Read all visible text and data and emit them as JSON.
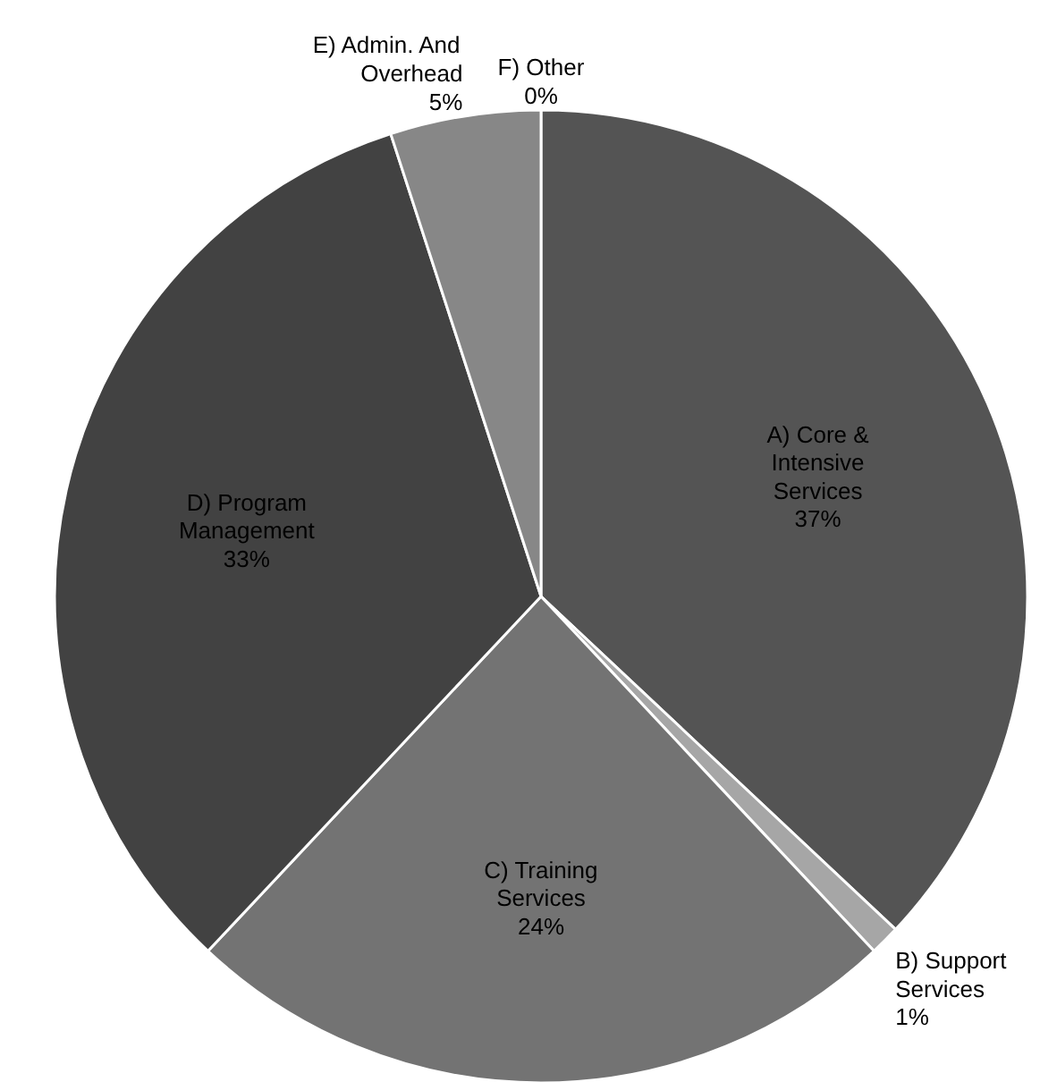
{
  "chart_data": {
    "type": "pie",
    "categories": [
      "A) Core & Intensive Services",
      "B) Support Services",
      "C) Training Services",
      "D) Program Management",
      "E) Admin. And Overhead",
      "F) Other"
    ],
    "values": [
      37,
      1,
      24,
      33,
      5,
      0
    ],
    "value_labels": [
      "37%",
      "1%",
      "24%",
      "33%",
      "5%",
      "0%"
    ],
    "colors": [
      "#545454",
      "#a6a6a6",
      "#737373",
      "#424242",
      "#878787",
      "#bfbfbf"
    ]
  }
}
